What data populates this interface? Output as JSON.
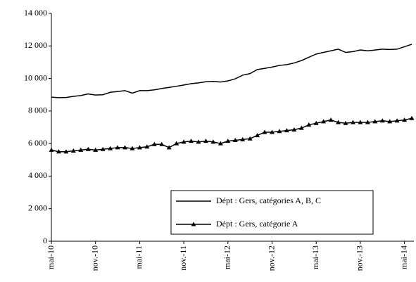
{
  "chart_data": {
    "type": "line",
    "categories": [
      "mai-10",
      null,
      null,
      null,
      null,
      null,
      "nov.-10",
      null,
      null,
      null,
      null,
      null,
      "mai-11",
      null,
      null,
      null,
      null,
      null,
      "nov.-11",
      null,
      null,
      null,
      null,
      null,
      "mai-12",
      null,
      null,
      null,
      null,
      null,
      "nov.-12",
      null,
      null,
      null,
      null,
      null,
      "mai-13",
      null,
      null,
      null,
      null,
      null,
      "nov.-13",
      null,
      null,
      null,
      null,
      null,
      "mai-14",
      null
    ],
    "series": [
      {
        "name": "Dépt : Gers, catégories A, B, C",
        "color": "#000000",
        "marker": "none",
        "values": [
          8850,
          8820,
          8830,
          8900,
          8950,
          9050,
          8980,
          9000,
          9150,
          9200,
          9250,
          9100,
          9250,
          9250,
          9300,
          9380,
          9450,
          9520,
          9600,
          9680,
          9730,
          9800,
          9820,
          9780,
          9850,
          9980,
          10200,
          10300,
          10550,
          10620,
          10700,
          10800,
          10850,
          10950,
          11100,
          11300,
          11500,
          11600,
          11700,
          11800,
          11600,
          11650,
          11750,
          11700,
          11750,
          11800,
          11780,
          11800,
          11950,
          12100
        ]
      },
      {
        "name": "Dépt : Gers, catégorie A",
        "color": "#000000",
        "marker": "triangle",
        "values": [
          5600,
          5500,
          5500,
          5550,
          5600,
          5650,
          5600,
          5650,
          5700,
          5750,
          5750,
          5700,
          5750,
          5800,
          5950,
          5950,
          5750,
          6000,
          6100,
          6150,
          6100,
          6150,
          6100,
          6000,
          6150,
          6200,
          6250,
          6300,
          6500,
          6700,
          6700,
          6750,
          6800,
          6850,
          6950,
          7150,
          7250,
          7350,
          7450,
          7300,
          7250,
          7300,
          7300,
          7300,
          7350,
          7400,
          7350,
          7400,
          7450,
          7550
        ]
      }
    ],
    "ylim": [
      0,
      14000
    ],
    "yticks": [
      0,
      {
        "value": 2000,
        "label": "2 000"
      },
      {
        "value": 4000,
        "label": "4 000"
      },
      {
        "value": 6000,
        "label": "6 000"
      },
      {
        "value": 8000,
        "label": "8 000"
      },
      {
        "value": 10000,
        "label": "10 000"
      },
      {
        "value": 12000,
        "label": "12 000"
      },
      {
        "value": 14000,
        "label": "14 000"
      }
    ],
    "grid": false,
    "legend": "bottom-right"
  }
}
